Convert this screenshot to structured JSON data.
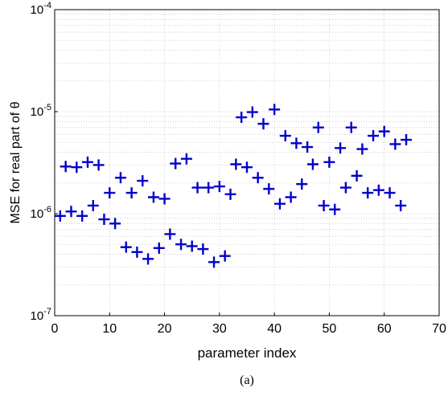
{
  "chart_data": {
    "type": "scatter",
    "xlabel": "parameter index",
    "ylabel": "MSE for real part of θ",
    "caption": "(a)",
    "xlim": [
      0,
      70
    ],
    "ylim": [
      1e-07,
      0.0001
    ],
    "yscale": "log",
    "grid": true,
    "marker": "plus",
    "color": "#0000cc",
    "xticks": [
      {
        "value": 0,
        "label": "0"
      },
      {
        "value": 10,
        "label": "10"
      },
      {
        "value": 20,
        "label": "20"
      },
      {
        "value": 30,
        "label": "30"
      },
      {
        "value": 40,
        "label": "40"
      },
      {
        "value": 50,
        "label": "50"
      },
      {
        "value": 60,
        "label": "60"
      },
      {
        "value": 70,
        "label": "70"
      }
    ],
    "yticks": [
      {
        "value": 1e-07,
        "base": "10",
        "exp": "-7"
      },
      {
        "value": 1e-06,
        "base": "10",
        "exp": "-6"
      },
      {
        "value": 1e-05,
        "base": "10",
        "exp": "-5"
      },
      {
        "value": 0.0001,
        "base": "10",
        "exp": "-4"
      }
    ],
    "x": [
      1,
      2,
      3,
      4,
      5,
      6,
      7,
      8,
      9,
      10,
      11,
      12,
      13,
      14,
      15,
      16,
      17,
      18,
      19,
      20,
      21,
      22,
      23,
      24,
      25,
      26,
      27,
      28,
      29,
      30,
      31,
      32,
      33,
      34,
      35,
      36,
      37,
      38,
      39,
      40,
      41,
      42,
      43,
      44,
      45,
      46,
      47,
      48,
      49,
      50,
      51,
      52,
      53,
      54,
      55,
      56,
      57,
      58,
      59,
      60,
      61,
      62,
      63,
      64
    ],
    "y": [
      9.5e-07,
      2.9e-06,
      1.05e-06,
      2.85e-06,
      9.5e-07,
      3.2e-06,
      1.2e-06,
      3e-06,
      8.8e-07,
      1.6e-06,
      8e-07,
      2.25e-06,
      4.7e-07,
      1.6e-06,
      4.2e-07,
      2.1e-06,
      3.6e-07,
      1.45e-06,
      4.6e-07,
      1.4e-06,
      6.3e-07,
      3.1e-06,
      5e-07,
      3.45e-06,
      4.8e-07,
      1.8e-06,
      4.5e-07,
      1.8e-06,
      3.35e-07,
      1.85e-06,
      3.85e-07,
      1.55e-06,
      3.05e-06,
      8.8e-06,
      2.85e-06,
      9.9e-06,
      2.25e-06,
      7.6e-06,
      1.75e-06,
      1.05e-05,
      1.25e-06,
      5.8e-06,
      1.45e-06,
      4.9e-06,
      1.95e-06,
      4.5e-06,
      3.05e-06,
      7e-06,
      1.2e-06,
      3.2e-06,
      1.1e-06,
      4.4e-06,
      1.8e-06,
      7e-06,
      2.35e-06,
      4.3e-06,
      1.6e-06,
      5.8e-06,
      1.7e-06,
      6.4e-06,
      1.6e-06,
      4.8e-06,
      1.2e-06,
      5.3e-06
    ]
  }
}
